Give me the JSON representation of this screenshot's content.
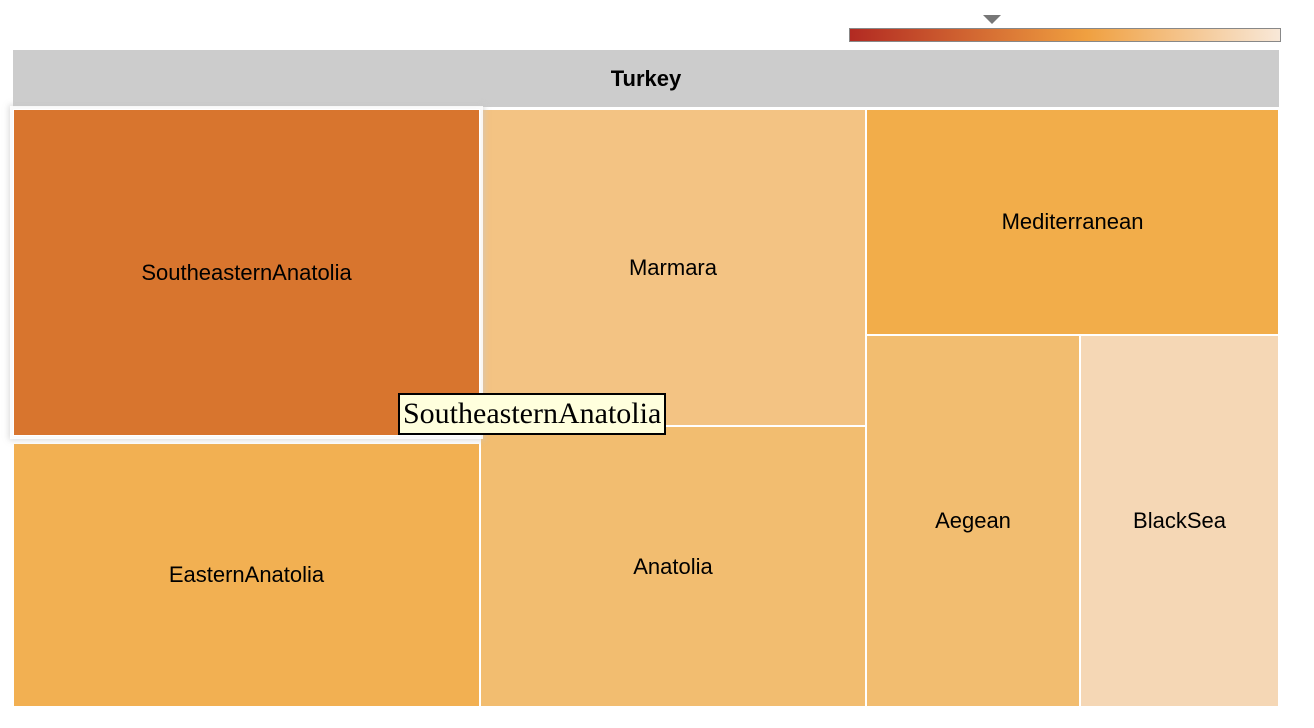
{
  "colors": {
    "scale_low": "#b22a22",
    "scale_mid": "#f0a040",
    "scale_high": "#f8e8d8",
    "header_bg": "#cccccc",
    "tooltip_bg": "#ffffdd"
  },
  "chart_data": {
    "type": "treemap",
    "root": "Turkey",
    "marker_position": 0.33,
    "cells": [
      {
        "name": "SoutheasternAnatolia",
        "color": "#d8752e",
        "highlighted": true
      },
      {
        "name": "EasternAnatolia",
        "color": "#f2b052"
      },
      {
        "name": "Marmara",
        "color": "#f3c383"
      },
      {
        "name": "Anatolia",
        "color": "#f2bd70"
      },
      {
        "name": "Mediterranean",
        "color": "#f2ad4a"
      },
      {
        "name": "Aegean",
        "color": "#f2bd70"
      },
      {
        "name": "BlackSea",
        "color": "#f5d7b5"
      }
    ]
  },
  "tooltip": {
    "text": "SoutheasternAnatolia"
  }
}
